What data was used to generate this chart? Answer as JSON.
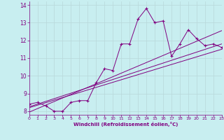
{
  "xlabel": "Windchill (Refroidissement éolien,°C)",
  "bg_color": "#c8eef0",
  "line_color": "#800080",
  "grid_color": "#b8d8da",
  "xlim": [
    0,
    23
  ],
  "ylim": [
    7.8,
    14.2
  ],
  "xticks": [
    0,
    1,
    2,
    3,
    4,
    5,
    6,
    7,
    8,
    9,
    10,
    11,
    12,
    13,
    14,
    15,
    16,
    17,
    18,
    19,
    20,
    21,
    22,
    23
  ],
  "yticks": [
    8,
    9,
    10,
    11,
    12,
    13,
    14
  ],
  "data_x": [
    0,
    1,
    2,
    3,
    4,
    5,
    6,
    7,
    8,
    9,
    10,
    11,
    12,
    13,
    14,
    15,
    16,
    17,
    18,
    19,
    20,
    21,
    22,
    23
  ],
  "data_y": [
    8.4,
    8.5,
    8.3,
    8.0,
    8.0,
    8.5,
    8.6,
    8.6,
    9.6,
    10.4,
    10.3,
    11.8,
    11.8,
    13.2,
    13.8,
    13.0,
    13.1,
    11.1,
    11.8,
    12.6,
    12.1,
    11.7,
    11.8,
    11.6
  ],
  "trend1_x": [
    0,
    23
  ],
  "trend1_y": [
    8.2,
    11.5
  ],
  "trend2_x": [
    0,
    23
  ],
  "trend2_y": [
    7.95,
    12.55
  ],
  "trend3_x": [
    0,
    23
  ],
  "trend3_y": [
    8.25,
    11.8
  ]
}
